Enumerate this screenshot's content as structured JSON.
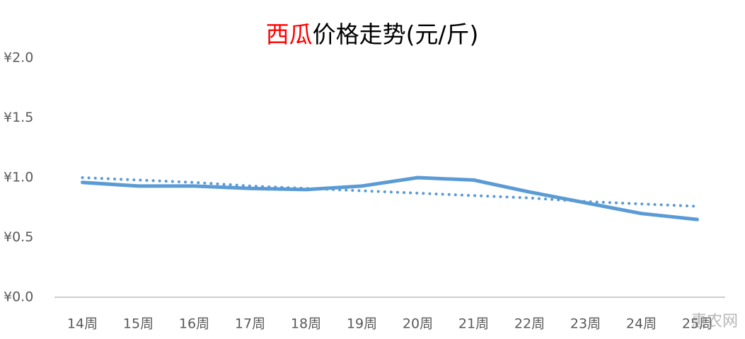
{
  "chart_data": {
    "type": "line",
    "title": [
      "西瓜",
      "价格走势(元/斤)"
    ],
    "title_colors": [
      "#ff0000",
      "#000000"
    ],
    "categories": [
      "14周",
      "15周",
      "16周",
      "17周",
      "18周",
      "19周",
      "20周",
      "21周",
      "22周",
      "23周",
      "24周",
      "25周"
    ],
    "series": [
      {
        "color": "#5b9bd5",
        "style": "solid",
        "values": [
          0.96,
          0.93,
          0.93,
          0.91,
          0.9,
          0.93,
          1.0,
          0.98,
          0.88,
          0.79,
          0.7,
          0.65
        ]
      },
      {
        "color": "#5b9bd5",
        "style": "dotted",
        "values": [
          1.0,
          0.98,
          0.96,
          0.93,
          0.91,
          0.89,
          0.87,
          0.85,
          0.83,
          0.8,
          0.78,
          0.76
        ]
      }
    ],
    "ylim": [
      0,
      2
    ],
    "yticks": [
      {
        "value": 0,
        "label": "¥0.0"
      },
      {
        "value": 0.5,
        "label": "¥0.5"
      },
      {
        "value": 1,
        "label": "¥1.0"
      },
      {
        "value": 1.5,
        "label": "¥1.5"
      },
      {
        "value": 2,
        "label": "¥2.0"
      }
    ],
    "grid": false,
    "watermark": "惠农网"
  }
}
